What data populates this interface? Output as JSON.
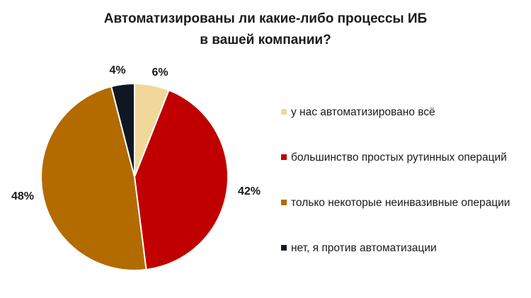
{
  "chart_data": {
    "type": "pie",
    "title_lines": [
      "Автоматизированы ли какие-либо процессы ИБ",
      "в вашей компании?"
    ],
    "slices": [
      {
        "label": "у нас автоматизировано всё",
        "value": 6,
        "value_label": "6%",
        "color": "#f1d89a"
      },
      {
        "label": "большинство простых рутинных операций",
        "value": 42,
        "value_label": "42%",
        "color": "#c00000"
      },
      {
        "label": "только некоторые неинвазивные операции",
        "value": 48,
        "value_label": "48%",
        "color": "#b36b00"
      },
      {
        "label": "нет, я против автоматизации",
        "value": 4,
        "value_label": "4%",
        "color": "#0f1822"
      }
    ],
    "legend": "right"
  }
}
